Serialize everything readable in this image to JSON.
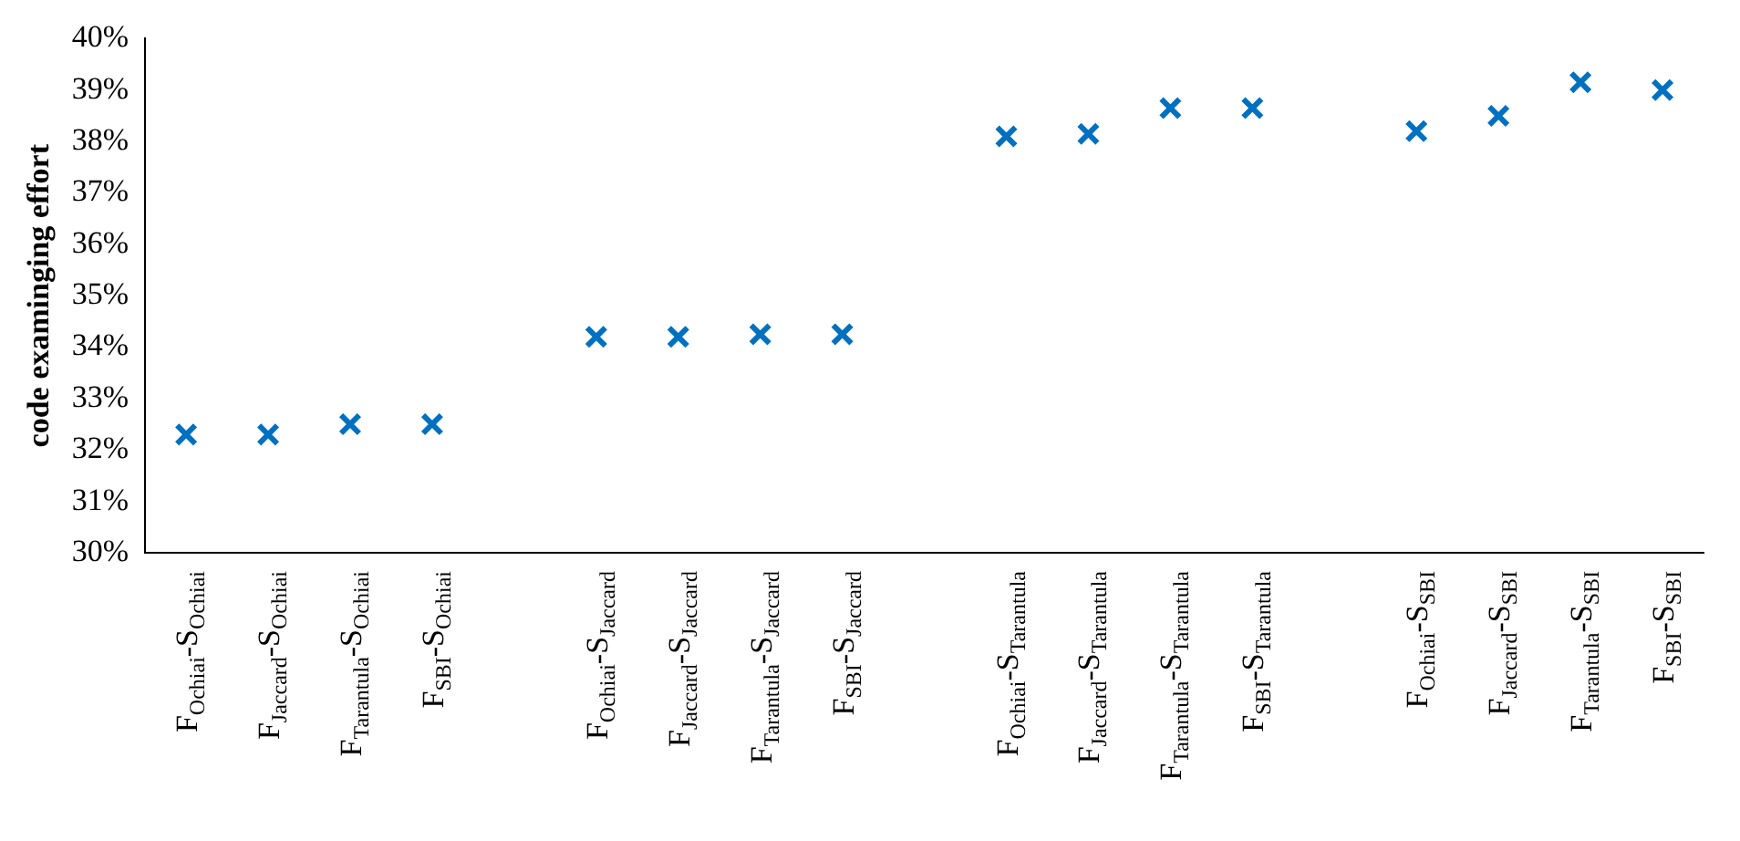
{
  "chart_data": {
    "type": "scatter",
    "ylabel": "code examinging effort",
    "categories": [
      "F$_{Ochiai}$-S$_{Ochiai}$",
      "F$_{Jaccard}$-S$_{Ochiai}$",
      "F$_{Tarantula}$-S$_{Ochiai}$",
      "F$_{SBI}$-S$_{Ochiai}$",
      null,
      "F$_{Ochiai}$-S$_{Jaccard}$",
      "F$_{Jaccard}$-S$_{Jaccard}$",
      "F$_{Tarantula}$-S$_{Jaccard}$",
      "F$_{SBI}$-S$_{Jaccard}$",
      null,
      "F$_{Ochiai}$-S$_{Tarantula}$",
      "F$_{Jaccard}$-S$_{Tarantula}$",
      "F$_{Tarantula}$-S$_{Tarantula}$",
      "F$_{SBI}$-S$_{Tarantula}$",
      null,
      "F$_{Ochiai}$-S$_{SBI}$",
      "F$_{Jaccard}$-S$_{SBI}$",
      "F$_{Tarantula}$-S$_{SBI}$",
      "F$_{SBI}$-S$_{SBI}$"
    ],
    "series": [
      {
        "color": "#0070c0",
        "values": [
          32.3,
          32.3,
          32.5,
          32.5,
          null,
          34.2,
          34.2,
          34.25,
          34.25,
          null,
          38.1,
          38.15,
          38.65,
          38.65,
          null,
          38.2,
          38.5,
          39.15,
          39.0
        ]
      }
    ],
    "ylim": [
      30,
      40
    ],
    "yticks": [
      {
        "value": 30,
        "label": "30%"
      },
      {
        "value": 31,
        "label": "31%"
      },
      {
        "value": 32,
        "label": "32%"
      },
      {
        "value": 33,
        "label": "33%"
      },
      {
        "value": 34,
        "label": "34%"
      },
      {
        "value": 35,
        "label": "35%"
      },
      {
        "value": 36,
        "label": "36%"
      },
      {
        "value": 37,
        "label": "37%"
      },
      {
        "value": 38,
        "label": "38%"
      },
      {
        "value": 39,
        "label": "39%"
      },
      {
        "value": 40,
        "label": "40%"
      }
    ],
    "grid": false,
    "legend": false,
    "marker": "cross"
  }
}
